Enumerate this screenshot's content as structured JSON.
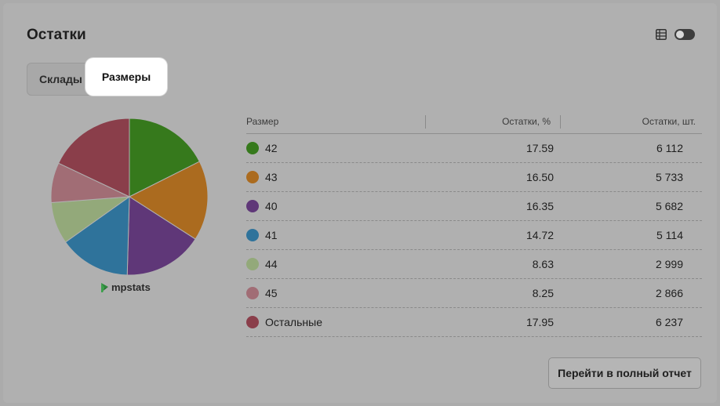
{
  "card": {
    "title": "Остатки"
  },
  "controls": {
    "table_icon": "table-grid-icon",
    "toggle_state": "off"
  },
  "tabs": [
    {
      "label": "Склады",
      "active": false
    },
    {
      "label": "Размеры",
      "active": true
    }
  ],
  "brand": {
    "name": "mpstats",
    "icon": "mpstats-logo-icon"
  },
  "table": {
    "headers": {
      "size": "Размер",
      "percent": "Остатки, %",
      "quantity": "Остатки, шт."
    },
    "rows": [
      {
        "size": "42",
        "percent": "17.59",
        "quantity": "6 112",
        "color": "#36791c"
      },
      {
        "size": "43",
        "percent": "16.50",
        "quantity": "5 733",
        "color": "#ab6b1f"
      },
      {
        "size": "40",
        "percent": "16.35",
        "quantity": "5 682",
        "color": "#5f3778"
      },
      {
        "size": "41",
        "percent": "14.72",
        "quantity": "5 114",
        "color": "#2f739b"
      },
      {
        "size": "44",
        "percent": "8.63",
        "quantity": "2 999",
        "color": "#93a97a"
      },
      {
        "size": "45",
        "percent": "8.25",
        "quantity": "2 866",
        "color": "#a16d75"
      },
      {
        "size": "Остальные",
        "percent": "17.95",
        "quantity": "6 237",
        "color": "#8a3e4a"
      }
    ]
  },
  "chart_data": {
    "type": "pie",
    "categories": [
      "42",
      "43",
      "40",
      "41",
      "44",
      "45",
      "Остальные"
    ],
    "values": [
      17.59,
      16.5,
      16.35,
      14.72,
      8.63,
      8.25,
      17.95
    ],
    "colors": [
      "#36791c",
      "#ab6b1f",
      "#5f3778",
      "#2f739b",
      "#93a97a",
      "#a16d75",
      "#8a3e4a"
    ]
  },
  "actions": {
    "report_label": "Перейти в полный отчет"
  }
}
